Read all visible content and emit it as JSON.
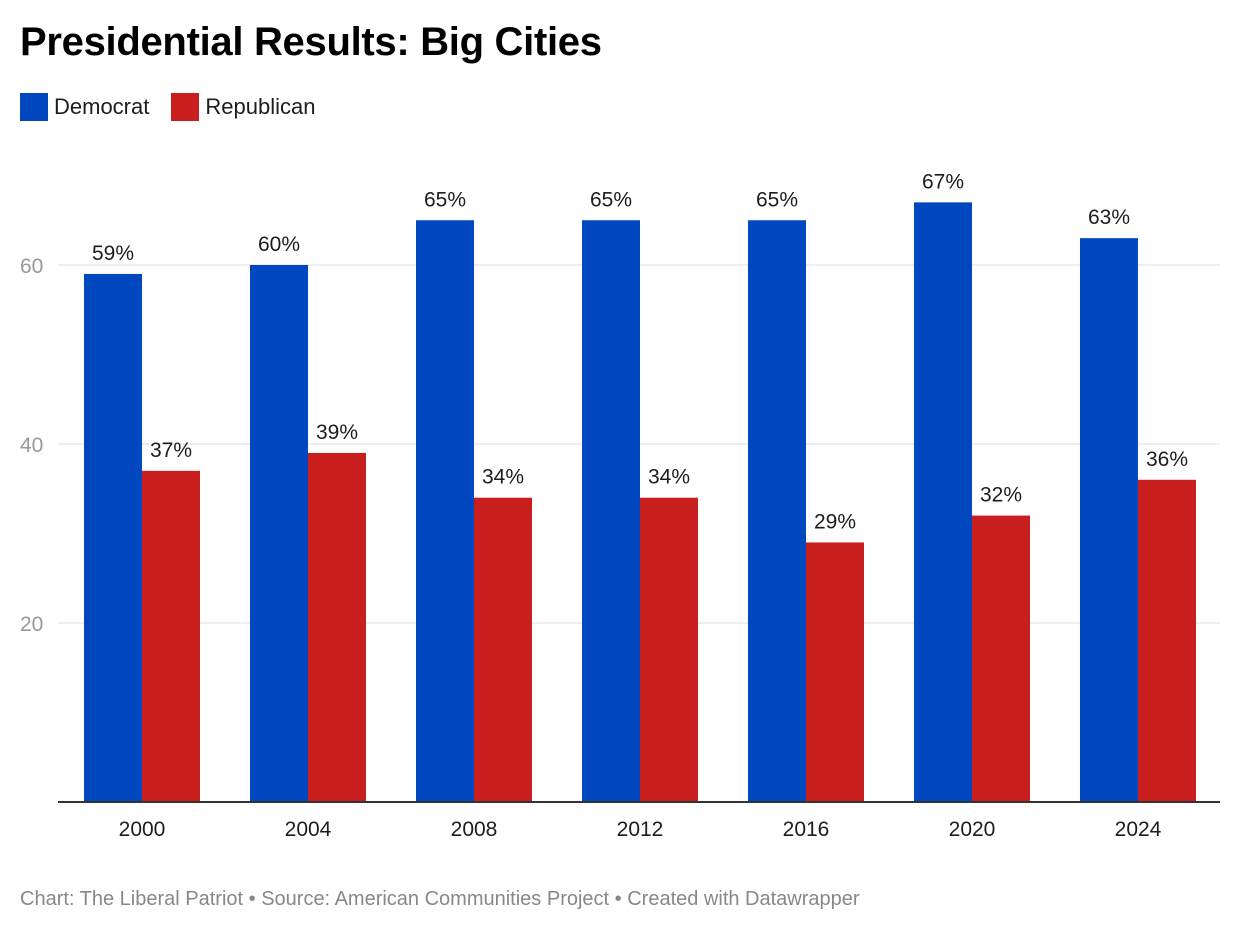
{
  "chart_data": {
    "type": "bar",
    "title": "Presidential Results: Big Cities",
    "categories": [
      "2000",
      "2004",
      "2008",
      "2012",
      "2016",
      "2020",
      "2024"
    ],
    "series": [
      {
        "name": "Democrat",
        "color": "#0047c0",
        "values": [
          59,
          60,
          65,
          65,
          65,
          67,
          63
        ],
        "labels": [
          "59%",
          "60%",
          "65%",
          "65%",
          "65%",
          "67%",
          "63%"
        ]
      },
      {
        "name": "Republican",
        "color": "#c81e1e",
        "values": [
          37,
          39,
          34,
          34,
          29,
          32,
          36
        ],
        "labels": [
          "37%",
          "39%",
          "34%",
          "34%",
          "29%",
          "32%",
          "36%"
        ]
      }
    ],
    "yticks": [
      20,
      40,
      60
    ],
    "ylim": [
      0,
      67
    ],
    "xlabel": "",
    "ylabel": "",
    "grid": true,
    "legend_position": "top-left"
  },
  "footer": {
    "text": "Chart: The Liberal Patriot • Source: American Communities Project • Created with Datawrapper"
  }
}
